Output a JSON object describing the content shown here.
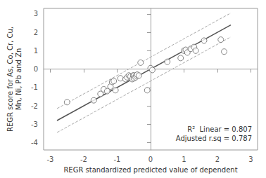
{
  "chart_data": {
    "type": "scatter",
    "xlabel": "REGR standardized predicted value of dependent",
    "ylabel": "REGR score for As, Co, Cr, Cu,\nMn, Ni, Pb and Zn",
    "annotations": [
      "R²  Linear = 0.807",
      "Adjusted r.sq = 0.787"
    ],
    "xlim": [
      -3.2,
      3.2
    ],
    "ylim": [
      -4.4,
      3.3
    ],
    "xticks": [
      -3,
      -2,
      -1,
      0,
      1,
      2,
      3
    ],
    "yticks": [
      -4,
      -3,
      -2,
      -1,
      0,
      1,
      2,
      3
    ],
    "grid": false,
    "series": [
      {
        "type": "scatter",
        "marker": "circle",
        "color": "#666666",
        "x": [
          -2.5,
          -1.7,
          -1.5,
          -1.4,
          -1.3,
          -1.2,
          -1.15,
          -1.1,
          -1.05,
          -0.9,
          -0.75,
          -0.7,
          -0.65,
          -0.6,
          -0.55,
          -0.52,
          -0.5,
          -0.5,
          -0.45,
          -0.43,
          -0.4,
          -0.35,
          -0.3,
          -0.1,
          0.0,
          0.05,
          0.5,
          0.9,
          1.0,
          1.05,
          1.1,
          1.2,
          1.3,
          1.35,
          1.6,
          2.1,
          2.2
        ],
        "values": [
          -1.8,
          -1.7,
          -1.35,
          -1.1,
          -1.2,
          -0.95,
          -0.7,
          -0.65,
          -1.15,
          -0.5,
          -0.55,
          -0.45,
          -0.35,
          -0.4,
          -0.55,
          -0.35,
          -0.35,
          -0.5,
          -0.45,
          -0.35,
          -0.3,
          -0.35,
          0.35,
          -1.15,
          0.05,
          -0.05,
          0.4,
          0.6,
          1.0,
          1.05,
          0.9,
          1.1,
          1.2,
          1.0,
          1.55,
          1.6,
          0.95
        ]
      },
      {
        "type": "line",
        "line_style": "solid",
        "color": "#555555",
        "x": [
          -2.8,
          2.4
        ],
        "values": [
          -2.8,
          2.4
        ]
      },
      {
        "type": "line",
        "line_style": "dashed",
        "color": "#aaaaaa",
        "x": [
          -2.8,
          2.4
        ],
        "values": [
          -2.15,
          3.05
        ]
      },
      {
        "type": "line",
        "line_style": "dashed",
        "color": "#aaaaaa",
        "x": [
          -2.8,
          2.4
        ],
        "values": [
          -3.45,
          1.75
        ]
      }
    ]
  }
}
